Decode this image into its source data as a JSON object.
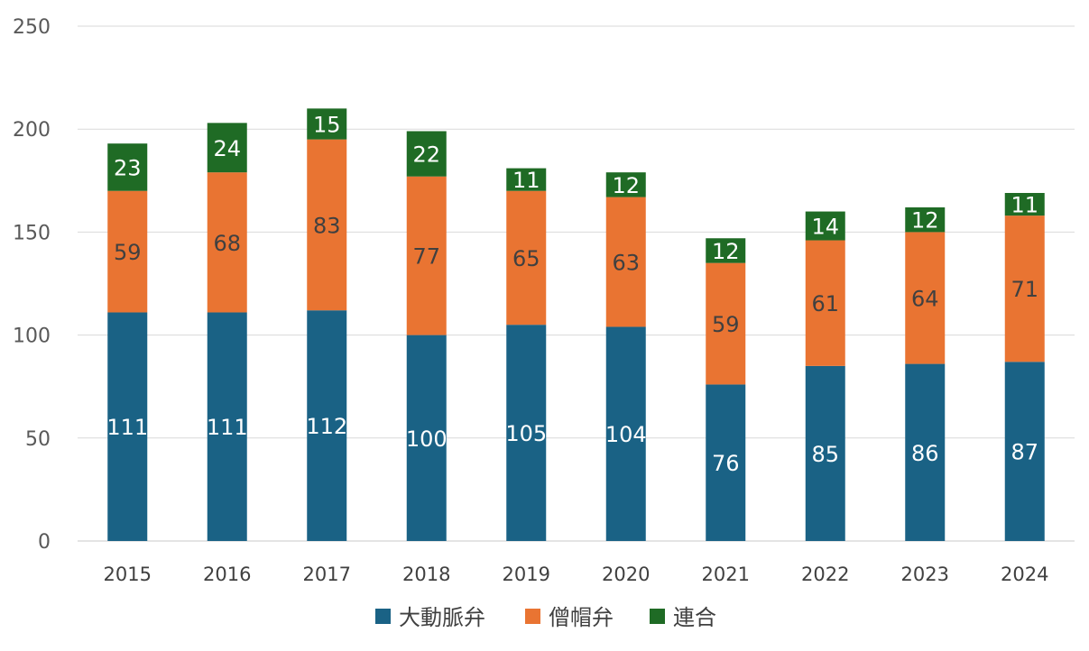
{
  "chart_data": {
    "type": "bar",
    "stacked": true,
    "categories": [
      "2015",
      "2016",
      "2017",
      "2018",
      "2019",
      "2020",
      "2021",
      "2022",
      "2023",
      "2024"
    ],
    "series": [
      {
        "name": "大動脈弁",
        "color": "#1a6285",
        "values": [
          111,
          111,
          112,
          100,
          105,
          104,
          76,
          85,
          86,
          87
        ]
      },
      {
        "name": "僧帽弁",
        "color": "#e97432",
        "values": [
          59,
          68,
          83,
          77,
          65,
          63,
          59,
          61,
          64,
          71
        ]
      },
      {
        "name": "連合",
        "color": "#1f6b25",
        "values": [
          23,
          24,
          15,
          22,
          11,
          12,
          12,
          14,
          12,
          11
        ]
      }
    ],
    "ylim": [
      0,
      250
    ],
    "yticks": [
      0,
      50,
      100,
      150,
      200,
      250
    ],
    "grid": true,
    "legend": "bottom",
    "data_labels": true
  }
}
